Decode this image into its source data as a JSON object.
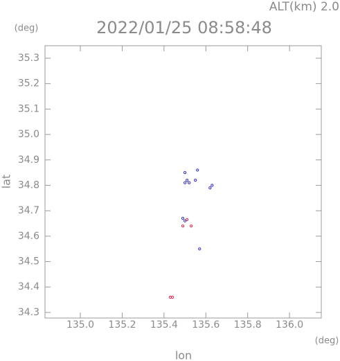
{
  "chart_data": {
    "type": "scatter",
    "annotation": "ALT(km) 2.0",
    "title": "2022/01/25 08:58:48",
    "y_unit": "(deg)",
    "x_unit": "(deg)",
    "ylabel": "lat",
    "xlabel": "lon",
    "xlim": [
      134.831,
      136.152
    ],
    "ylim": [
      34.278,
      35.349
    ],
    "xticks": [
      {
        "value": 135,
        "label": "135.0"
      },
      135.2,
      135.4,
      135.6,
      135.8,
      {
        "value": 136,
        "label": "136.0"
      }
    ],
    "yticks": [
      34.3,
      34.4,
      34.5,
      34.6,
      34.7,
      34.8,
      34.9,
      {
        "value": 35,
        "label": "35.0"
      },
      35.1,
      35.2,
      35.3
    ],
    "series": [
      {
        "color": "#2a2ad8",
        "x": [
          135.5,
          135.51,
          135.52,
          135.55,
          135.62,
          135.63,
          135.5,
          135.56,
          135.49,
          135.5,
          135.57
        ],
        "values": [
          34.81,
          34.82,
          34.81,
          34.82,
          34.79,
          34.8,
          34.85,
          34.86,
          34.67,
          34.66,
          34.55
        ]
      },
      {
        "color": "#e0204a",
        "x": [
          135.49,
          135.53,
          135.43,
          135.44,
          135.51
        ],
        "values": [
          34.64,
          34.64,
          34.36,
          34.36,
          34.665
        ]
      }
    ]
  }
}
